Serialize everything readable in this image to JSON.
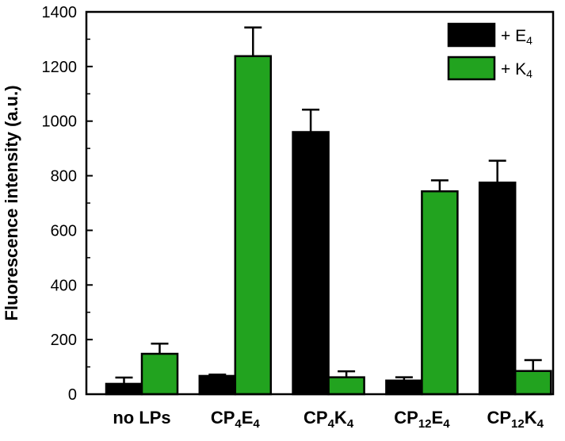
{
  "chart_data": {
    "type": "bar",
    "title": "",
    "xlabel": "",
    "ylabel": "Fluorescence intensity (a.u.)",
    "ylim": [
      0,
      1400
    ],
    "yticks": [
      0,
      200,
      400,
      600,
      800,
      1000,
      1200,
      1400
    ],
    "grid": false,
    "legend_position": "top-right",
    "categories": [
      {
        "main": "no LPs"
      },
      {
        "parts": [
          {
            "t": "CP"
          },
          {
            "t": "4",
            "sub": true
          },
          {
            "t": "E"
          },
          {
            "t": "4",
            "sub": true
          }
        ]
      },
      {
        "parts": [
          {
            "t": "CP"
          },
          {
            "t": "4",
            "sub": true
          },
          {
            "t": "K"
          },
          {
            "t": "4",
            "sub": true
          }
        ]
      },
      {
        "parts": [
          {
            "t": "CP"
          },
          {
            "t": "12",
            "sub": true
          },
          {
            "t": "E"
          },
          {
            "t": "4",
            "sub": true
          }
        ]
      },
      {
        "parts": [
          {
            "t": "CP"
          },
          {
            "t": "12",
            "sub": true
          },
          {
            "t": "K"
          },
          {
            "t": "4",
            "sub": true
          }
        ]
      }
    ],
    "series": [
      {
        "name": "+ E4",
        "legend_parts": [
          {
            "t": "+ E"
          },
          {
            "t": "4",
            "sub": true
          }
        ],
        "color": "#000000",
        "values": [
          38,
          67,
          960,
          50,
          775
        ],
        "errors": [
          23,
          5,
          82,
          12,
          80
        ]
      },
      {
        "name": "+ K4",
        "legend_parts": [
          {
            "t": "+ K"
          },
          {
            "t": "4",
            "sub": true
          }
        ],
        "color": "#22a31f",
        "values": [
          148,
          1238,
          62,
          743,
          85
        ],
        "errors": [
          37,
          105,
          22,
          40,
          40
        ]
      }
    ]
  }
}
